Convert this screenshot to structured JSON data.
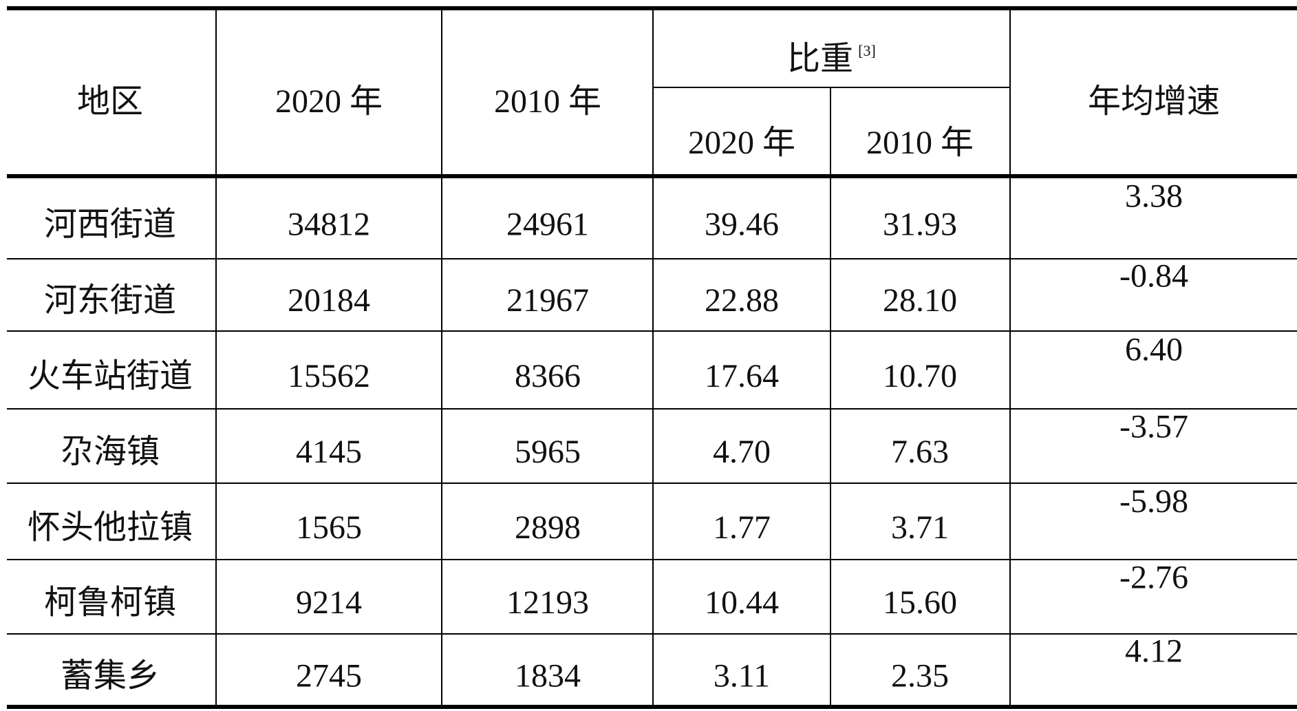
{
  "table": {
    "header": {
      "region": "地区",
      "pop_2020": "2020 年",
      "pop_2010": "2010 年",
      "share": "比重",
      "share_note": "[3]",
      "share_2020": "2020 年",
      "share_2010": "2010 年",
      "growth": "年均增速"
    },
    "rows": [
      [
        "河西街道",
        "34812",
        "24961",
        "39.46",
        "31.93",
        "3.38"
      ],
      [
        "河东街道",
        "20184",
        "21967",
        "22.88",
        "28.10",
        "-0.84"
      ],
      [
        "火车站街道",
        "15562",
        "8366",
        "17.64",
        "10.70",
        "6.40"
      ],
      [
        "尕海镇",
        "4145",
        "5965",
        "4.70",
        "7.63",
        "-3.57"
      ],
      [
        "怀头他拉镇",
        "1565",
        "2898",
        "1.77",
        "3.71",
        "-5.98"
      ],
      [
        "柯鲁柯镇",
        "9214",
        "12193",
        "10.44",
        "15.60",
        "-2.76"
      ],
      [
        "蓄集乡",
        "2745",
        "1834",
        "3.11",
        "2.35",
        "4.12"
      ]
    ]
  }
}
